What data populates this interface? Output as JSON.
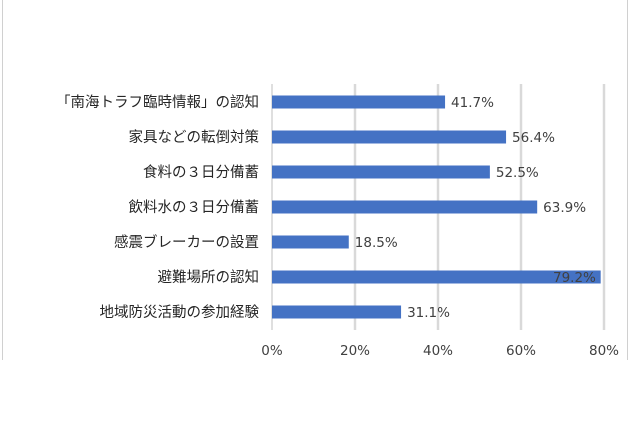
{
  "chart_data": {
    "type": "bar",
    "orientation": "horizontal",
    "categories": [
      "「南海トラフ臨時情報」の認知",
      "家具などの転倒対策",
      "食料の３日分備蓄",
      "飲料水の３日分備蓄",
      "感震ブレーカーの設置",
      "避難場所の認知",
      "地域防災活動の参加経験"
    ],
    "values": [
      41.7,
      56.4,
      52.5,
      63.9,
      18.5,
      79.2,
      31.1
    ],
    "value_labels": [
      "41.7%",
      "56.4%",
      "52.5%",
      "63.9%",
      "18.5%",
      "79.2%",
      "31.1%"
    ],
    "xlim": [
      0,
      80
    ],
    "xticks": [
      0,
      20,
      40,
      60,
      80
    ],
    "xtick_labels": [
      "0%",
      "20%",
      "40%",
      "60%",
      "80%"
    ],
    "grid": true,
    "bar_color": "#4472C4",
    "grid_color": "#d9d9d9",
    "title": "",
    "xlabel": "",
    "ylabel": ""
  }
}
